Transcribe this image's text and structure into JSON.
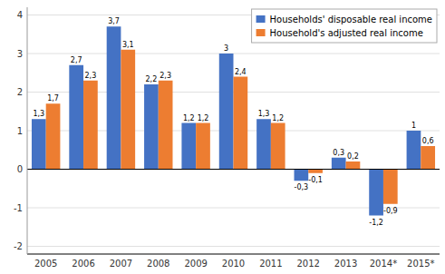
{
  "chart_data": {
    "type": "bar",
    "categories": [
      "2005",
      "2006",
      "2007",
      "2008",
      "2009",
      "2010",
      "2011",
      "2012",
      "2013",
      "2014*",
      "2015*"
    ],
    "series": [
      {
        "name": "Households' disposable real income",
        "color": "#4472C4",
        "values": [
          1.3,
          2.7,
          3.7,
          2.2,
          1.2,
          3.0,
          1.3,
          -0.3,
          0.3,
          -1.2,
          1.0
        ],
        "value_labels": [
          "1,3",
          "2,7",
          "3,7",
          "2,2",
          "1,2",
          "3",
          "1,3",
          "-0,3",
          "0,3",
          "-1,2",
          "1"
        ]
      },
      {
        "name": "Household's adjusted real income",
        "color": "#ED7D31",
        "values": [
          1.7,
          2.3,
          3.1,
          2.3,
          1.2,
          2.4,
          1.2,
          -0.1,
          0.2,
          -0.9,
          0.6
        ],
        "value_labels": [
          "1,7",
          "2,3",
          "3,1",
          "2,3",
          "1,2",
          "2,4",
          "1,2",
          "-0,1",
          "0,2",
          "-0,9",
          "0,6"
        ]
      }
    ],
    "ylim": [
      -2.2,
      4.2
    ],
    "yticks": [
      -2,
      -1,
      0,
      1,
      2,
      3,
      4
    ],
    "grid": true,
    "legend": "upper-right",
    "data_labels": true
  }
}
